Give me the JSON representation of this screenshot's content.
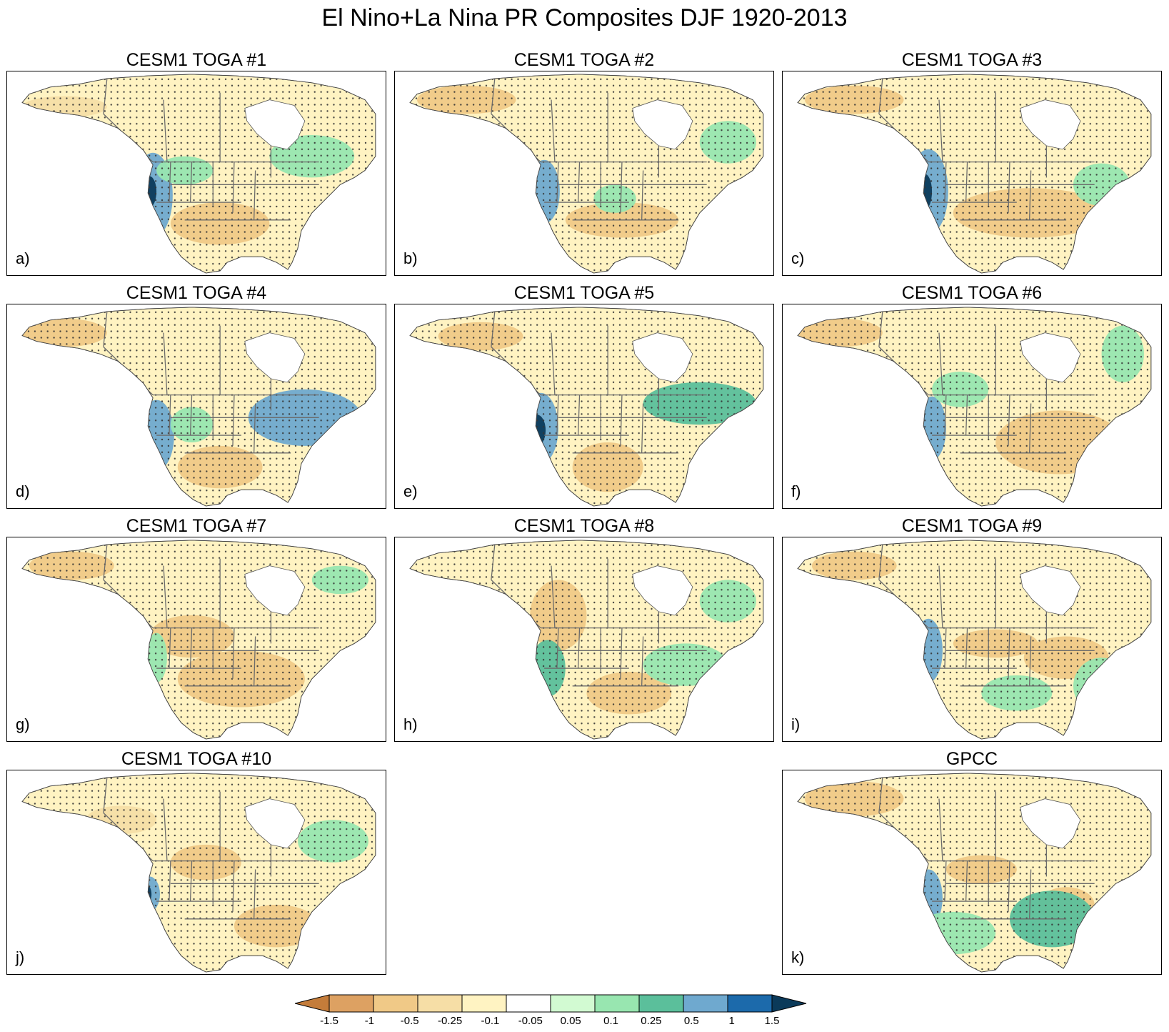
{
  "title": "El Nino+La Nina PR Composites DJF 1920-2013",
  "colors": {
    "dry_strong": "#c47c3a",
    "dry_2": "#dda162",
    "dry_3": "#f0c987",
    "dry_4": "#f6dea6",
    "dry_5": "#fff3c2",
    "neutral": "#ffffff",
    "wet_1": "#d2fad2",
    "wet_2": "#98e6b0",
    "wet_3": "#5bbf9b",
    "wet_4": "#6fa9cf",
    "wet_5": "#1c6aab",
    "wet_strong": "#0b3a5a",
    "land": "#f3f0e6",
    "border": "#6b6b6b"
  },
  "panels": [
    {
      "title": "CESM1 TOGA #1",
      "label": "a)"
    },
    {
      "title": "CESM1 TOGA #2",
      "label": "b)"
    },
    {
      "title": "CESM1 TOGA #3",
      "label": "c)"
    },
    {
      "title": "CESM1 TOGA #4",
      "label": "d)"
    },
    {
      "title": "CESM1 TOGA #5",
      "label": "e)"
    },
    {
      "title": "CESM1 TOGA #6",
      "label": "f)"
    },
    {
      "title": "CESM1 TOGA #7",
      "label": "g)"
    },
    {
      "title": "CESM1 TOGA #8",
      "label": "h)"
    },
    {
      "title": "CESM1 TOGA #9",
      "label": "i)"
    },
    {
      "title": "CESM1 TOGA #10",
      "label": "j)"
    },
    {
      "title": "GPCC",
      "label": "k)"
    }
  ],
  "colorbar": {
    "levels": [
      "-1.5",
      "-1",
      "-0.5",
      "-0.25",
      "-0.1",
      "-0.05",
      "0.05",
      "0.1",
      "0.25",
      "0.5",
      "1",
      "1.5"
    ]
  }
}
